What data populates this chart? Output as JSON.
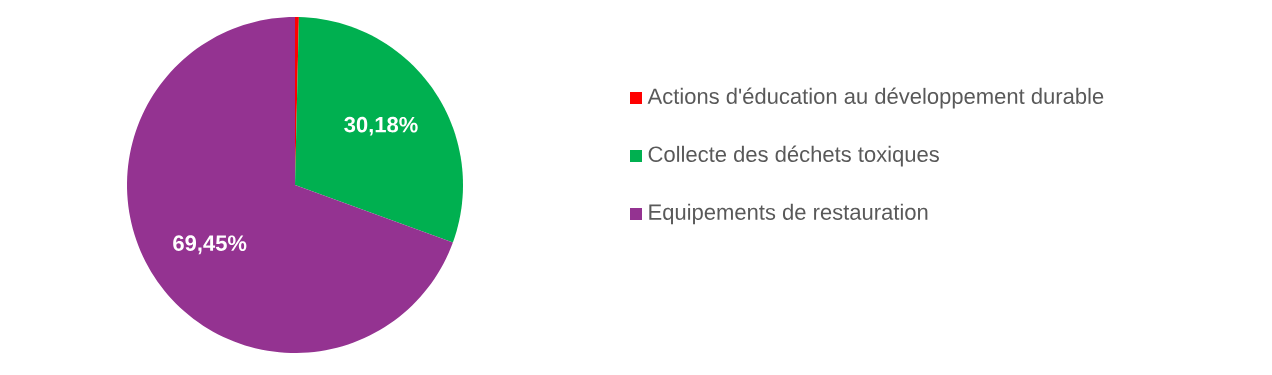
{
  "chart_data": {
    "type": "pie",
    "categories": [
      "Actions d'éducation au développement durable",
      "Collecte des déchets toxiques",
      "Equipements de restauration"
    ],
    "values": [
      0.37,
      30.18,
      69.45
    ],
    "colors": [
      "#ff0000",
      "#00b050",
      "#943391"
    ],
    "value_labels": [
      null,
      "30,18%",
      "69,45%"
    ],
    "legend": "right"
  }
}
